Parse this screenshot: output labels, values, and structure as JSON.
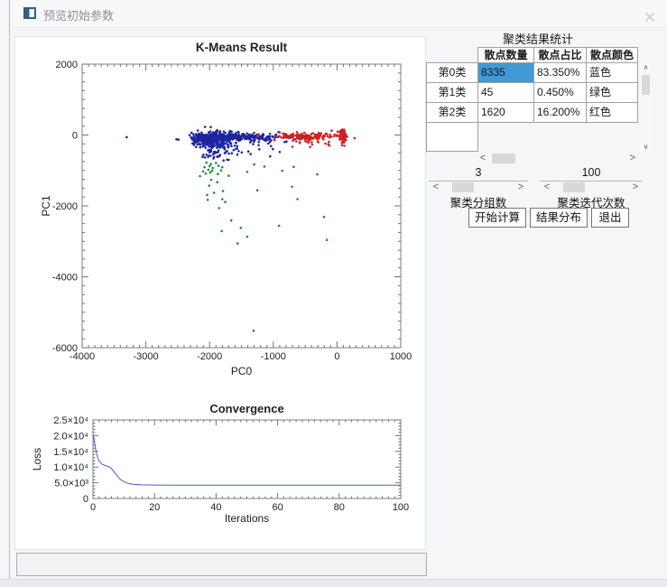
{
  "window": {
    "title": "预览初始参数"
  },
  "icons": {
    "close": "✕",
    "left": "<",
    "right": ">",
    "up": "∧",
    "down": "∨"
  },
  "colors": {
    "cluster_blue": "#1e25a0",
    "cluster_green": "#1d8a3e",
    "cluster_red": "#cf2020",
    "selection": "#3f9ad6",
    "curve": "#4a5bc8"
  },
  "stats": {
    "title": "聚类结果统计",
    "columns": [
      "散点数量",
      "散点占比",
      "散点颜色"
    ],
    "rows": [
      {
        "label": "第0类",
        "count": "8335",
        "pct": "83.350%",
        "color": "蓝色"
      },
      {
        "label": "第1类",
        "count": "45",
        "pct": "0.450%",
        "color": "绿色"
      },
      {
        "label": "第2类",
        "count": "1620",
        "pct": "16.200%",
        "color": "红色"
      }
    ],
    "selected_cell": {
      "row": 0,
      "col": 0
    }
  },
  "controls": {
    "groups": {
      "value": "3",
      "label": "聚类分组数"
    },
    "iterations": {
      "value": "100",
      "label": "聚类迭代次数"
    },
    "buttons": {
      "start": "开始计算",
      "distribution": "结果分布",
      "exit": "退出"
    }
  },
  "progress": {
    "value": ""
  },
  "chart_data": [
    {
      "type": "scatter",
      "title": "K-Means Result",
      "xlabel": "PC0",
      "ylabel": "PC1",
      "xlim": [
        -4000,
        1000
      ],
      "ylim": [
        -6000,
        2000
      ],
      "xticks": [
        -4000,
        -3000,
        -2000,
        -1000,
        0,
        1000
      ],
      "yticks": [
        2000,
        0,
        -2000,
        -4000,
        -6000
      ],
      "x_minor_step": 100,
      "y_minor_step": 250,
      "seed": 7,
      "point_radius": 1.3,
      "clusters": [
        {
          "name": "第0类",
          "color_label": "蓝色",
          "color": "#1e25a0",
          "total_points": 8335,
          "blobs": [
            [
              -1950,
              -130,
              140,
              110,
              240
            ],
            [
              -1770,
              -50,
              200,
              60,
              170
            ],
            [
              -1380,
              -55,
              240,
              45,
              110
            ],
            [
              -1850,
              -400,
              160,
              150,
              70
            ],
            [
              -1150,
              -150,
              200,
              100,
              22
            ],
            [
              -2150,
              -150,
              80,
              90,
              30
            ]
          ],
          "points": [
            [
              -3300,
              -60
            ],
            [
              -2520,
              -120
            ],
            [
              -1050,
              -600
            ],
            [
              -900,
              -480
            ],
            [
              -1700,
              -700
            ]
          ]
        },
        {
          "name": "第2类",
          "color_label": "红色",
          "color": "#cf2020",
          "total_points": 1620,
          "blobs": [
            [
              -500,
              -45,
              230,
              50,
              140
            ],
            [
              90,
              -30,
              35,
              90,
              85
            ],
            [
              -380,
              -200,
              200,
              60,
              14
            ]
          ],
          "points": [
            [
              -700,
              -330
            ],
            [
              -120,
              -300
            ],
            [
              55,
              120
            ],
            [
              80,
              150
            ]
          ]
        },
        {
          "name": "第1类",
          "color_label": "绿色",
          "color": "#1d8a3e",
          "total_points": 45,
          "blobs": [],
          "points": [
            [
              -2050,
              -780
            ],
            [
              -1980,
              -820
            ],
            [
              -1900,
              -790
            ],
            [
              -2000,
              -880
            ],
            [
              -2080,
              -910
            ],
            [
              -1950,
              -930
            ],
            [
              -1860,
              -870
            ],
            [
              -1800,
              -910
            ],
            [
              -2020,
              -980
            ],
            [
              -1960,
              -1010
            ],
            [
              -2100,
              -1030
            ],
            [
              -1820,
              -1000
            ],
            [
              -1300,
              -830
            ],
            [
              -1140,
              -890
            ],
            [
              -680,
              -900
            ],
            [
              -860,
              -1010
            ],
            [
              -2060,
              -1090
            ],
            [
              -1990,
              -1060
            ],
            [
              -1870,
              -1100
            ],
            [
              -1410,
              -1040
            ],
            [
              -2150,
              -1160
            ],
            [
              -1700,
              -1150
            ],
            [
              -1975,
              -1260
            ],
            [
              -1880,
              -1330
            ],
            [
              -2005,
              -1430
            ],
            [
              -1250,
              -1560
            ],
            [
              -1790,
              -1580
            ],
            [
              -1930,
              -1630
            ],
            [
              -2040,
              -1690
            ],
            [
              -1800,
              -1810
            ],
            [
              -2030,
              -1830
            ],
            [
              -1755,
              -1890
            ],
            [
              -705,
              -1460
            ],
            [
              -620,
              -1810
            ],
            [
              -310,
              -1110
            ],
            [
              -205,
              -2310
            ],
            [
              -1850,
              -2060
            ],
            [
              -1660,
              -2410
            ],
            [
              -1510,
              -2620
            ],
            [
              -1810,
              -2710
            ],
            [
              -1410,
              -2870
            ],
            [
              -1560,
              -3060
            ],
            [
              -910,
              -2560
            ],
            [
              -160,
              -2960
            ],
            [
              -1310,
              -5520
            ]
          ]
        }
      ]
    },
    {
      "type": "line",
      "title": "Convergence",
      "xlabel": "Iterations",
      "ylabel": "Loss",
      "xlim": [
        0,
        100
      ],
      "ylim": [
        0,
        25000
      ],
      "xticks": [
        0,
        20,
        40,
        60,
        80,
        100
      ],
      "yticks": [
        {
          "value": 0,
          "label": "0"
        },
        {
          "value": 5000,
          "label": "5.0×10³"
        },
        {
          "value": 10000,
          "label": "1.0×10⁴"
        },
        {
          "value": 15000,
          "label": "1.5×10⁴"
        },
        {
          "value": 20000,
          "label": "2.0×10⁴"
        },
        {
          "value": 25000,
          "label": "2.5×10⁴"
        }
      ],
      "x_minor_step": 2,
      "y_minor_step": 1000,
      "color": "#4a5bc8",
      "points": [
        [
          0,
          20500
        ],
        [
          0.5,
          18000
        ],
        [
          1,
          15000
        ],
        [
          1.5,
          13100
        ],
        [
          2,
          11900
        ],
        [
          3,
          10900
        ],
        [
          4,
          10500
        ],
        [
          5,
          10200
        ],
        [
          6,
          9500
        ],
        [
          7,
          8300
        ],
        [
          8,
          7000
        ],
        [
          9,
          6000
        ],
        [
          10,
          5400
        ],
        [
          11,
          4950
        ],
        [
          12,
          4700
        ],
        [
          13,
          4550
        ],
        [
          14,
          4450
        ],
        [
          16,
          4350
        ],
        [
          18,
          4300
        ],
        [
          20,
          4270
        ],
        [
          25,
          4240
        ],
        [
          30,
          4230
        ],
        [
          40,
          4220
        ],
        [
          50,
          4220
        ],
        [
          60,
          4220
        ],
        [
          70,
          4220
        ],
        [
          80,
          4220
        ],
        [
          90,
          4220
        ],
        [
          100,
          4220
        ]
      ]
    }
  ]
}
